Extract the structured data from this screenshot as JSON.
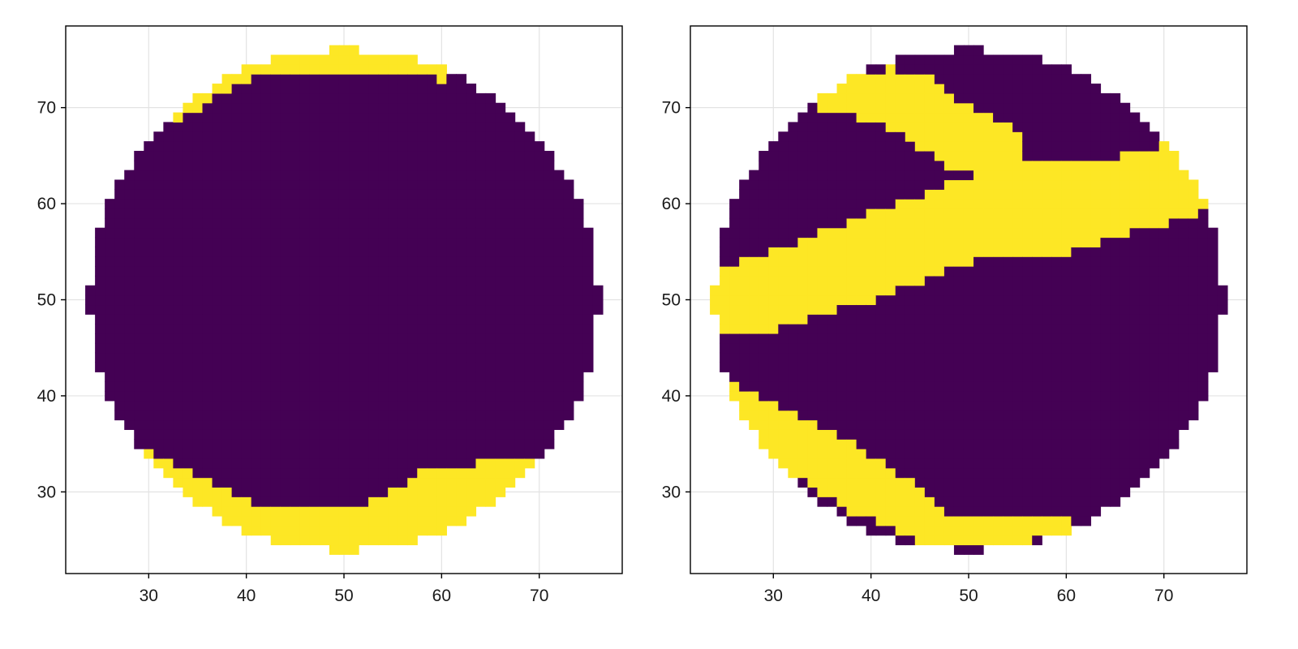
{
  "chart_data": [
    {
      "type": "heatmap",
      "title": "",
      "xlabel": "",
      "ylabel": "",
      "xlim": [
        21.5,
        78.5
      ],
      "ylim": [
        21.5,
        78.5
      ],
      "xticks": [
        30,
        40,
        50,
        60,
        70
      ],
      "yticks": [
        30,
        40,
        50,
        60,
        70
      ],
      "grid": true,
      "cell_size": 1,
      "colors": {
        "low": "#440154",
        "high": "#fde725"
      },
      "disk": {
        "center": [
          50,
          50
        ],
        "radius": 26
      },
      "bands": [
        {
          "name": "top cap",
          "from_boundary": [
            [
              30,
              67
            ],
            [
              40,
              73
            ],
            [
              50,
              74
            ],
            [
              60,
              73
            ]
          ],
          "level": 1
        },
        {
          "name": "bottom crescent",
          "from_boundary": [
            [
              27,
              36
            ],
            [
              34,
              32
            ],
            [
              40,
              29
            ],
            [
              47,
              28
            ],
            [
              53,
              29
            ],
            [
              58,
              32
            ],
            [
              64,
              33
            ],
            [
              72,
              34
            ]
          ],
          "level": 1
        }
      ],
      "values_description_levels": [
        0,
        1
      ]
    },
    {
      "type": "heatmap",
      "title": "",
      "xlabel": "",
      "ylabel": "",
      "xlim": [
        21.5,
        78.5
      ],
      "ylim": [
        21.5,
        78.5
      ],
      "xticks": [
        30,
        40,
        50,
        60,
        70
      ],
      "yticks": [
        30,
        40,
        50,
        60,
        70
      ],
      "grid": true,
      "cell_size": 1,
      "colors": {
        "low": "#440154",
        "high": "#fde725"
      },
      "disk": {
        "center": [
          50,
          50
        ],
        "radius": 26
      },
      "bands": [
        {
          "name": "diagonal band",
          "lower": [
            [
              24,
              46
            ],
            [
              30,
              47
            ],
            [
              40,
              50
            ],
            [
              50,
              54
            ],
            [
              60,
              55
            ],
            [
              70,
              58
            ],
            [
              76,
              60
            ]
          ],
          "upper": [
            [
              24,
              53
            ],
            [
              30,
              55
            ],
            [
              40,
              59
            ],
            [
              48,
              62
            ],
            [
              55,
              65
            ],
            [
              62,
              64
            ],
            [
              70,
              66
            ],
            [
              76,
              62
            ]
          ],
          "level": 1
        },
        {
          "name": "upper branch",
          "lower": [
            [
              35,
              70
            ],
            [
              42,
              68
            ],
            [
              48,
              64
            ],
            [
              55,
              64
            ]
          ],
          "upper": [
            [
              35,
              73
            ],
            [
              42,
              74
            ],
            [
              46,
              73
            ],
            [
              50,
              70
            ],
            [
              56,
              67
            ],
            [
              62,
              64
            ]
          ],
          "level": 1
        },
        {
          "name": "lower crescent",
          "lower": [
            [
              26,
              38
            ],
            [
              32,
              32
            ],
            [
              38,
              28
            ],
            [
              45,
              25
            ],
            [
              52,
              24
            ],
            [
              60,
              26
            ]
          ],
          "upper": [
            [
              26,
              41
            ],
            [
              32,
              38
            ],
            [
              38,
              35
            ],
            [
              44,
              31
            ],
            [
              48,
              27
            ],
            [
              55,
              27
            ],
            [
              62,
              28
            ],
            [
              66,
              31
            ]
          ],
          "level": 1
        }
      ],
      "values_description_levels": [
        0,
        1
      ]
    }
  ]
}
